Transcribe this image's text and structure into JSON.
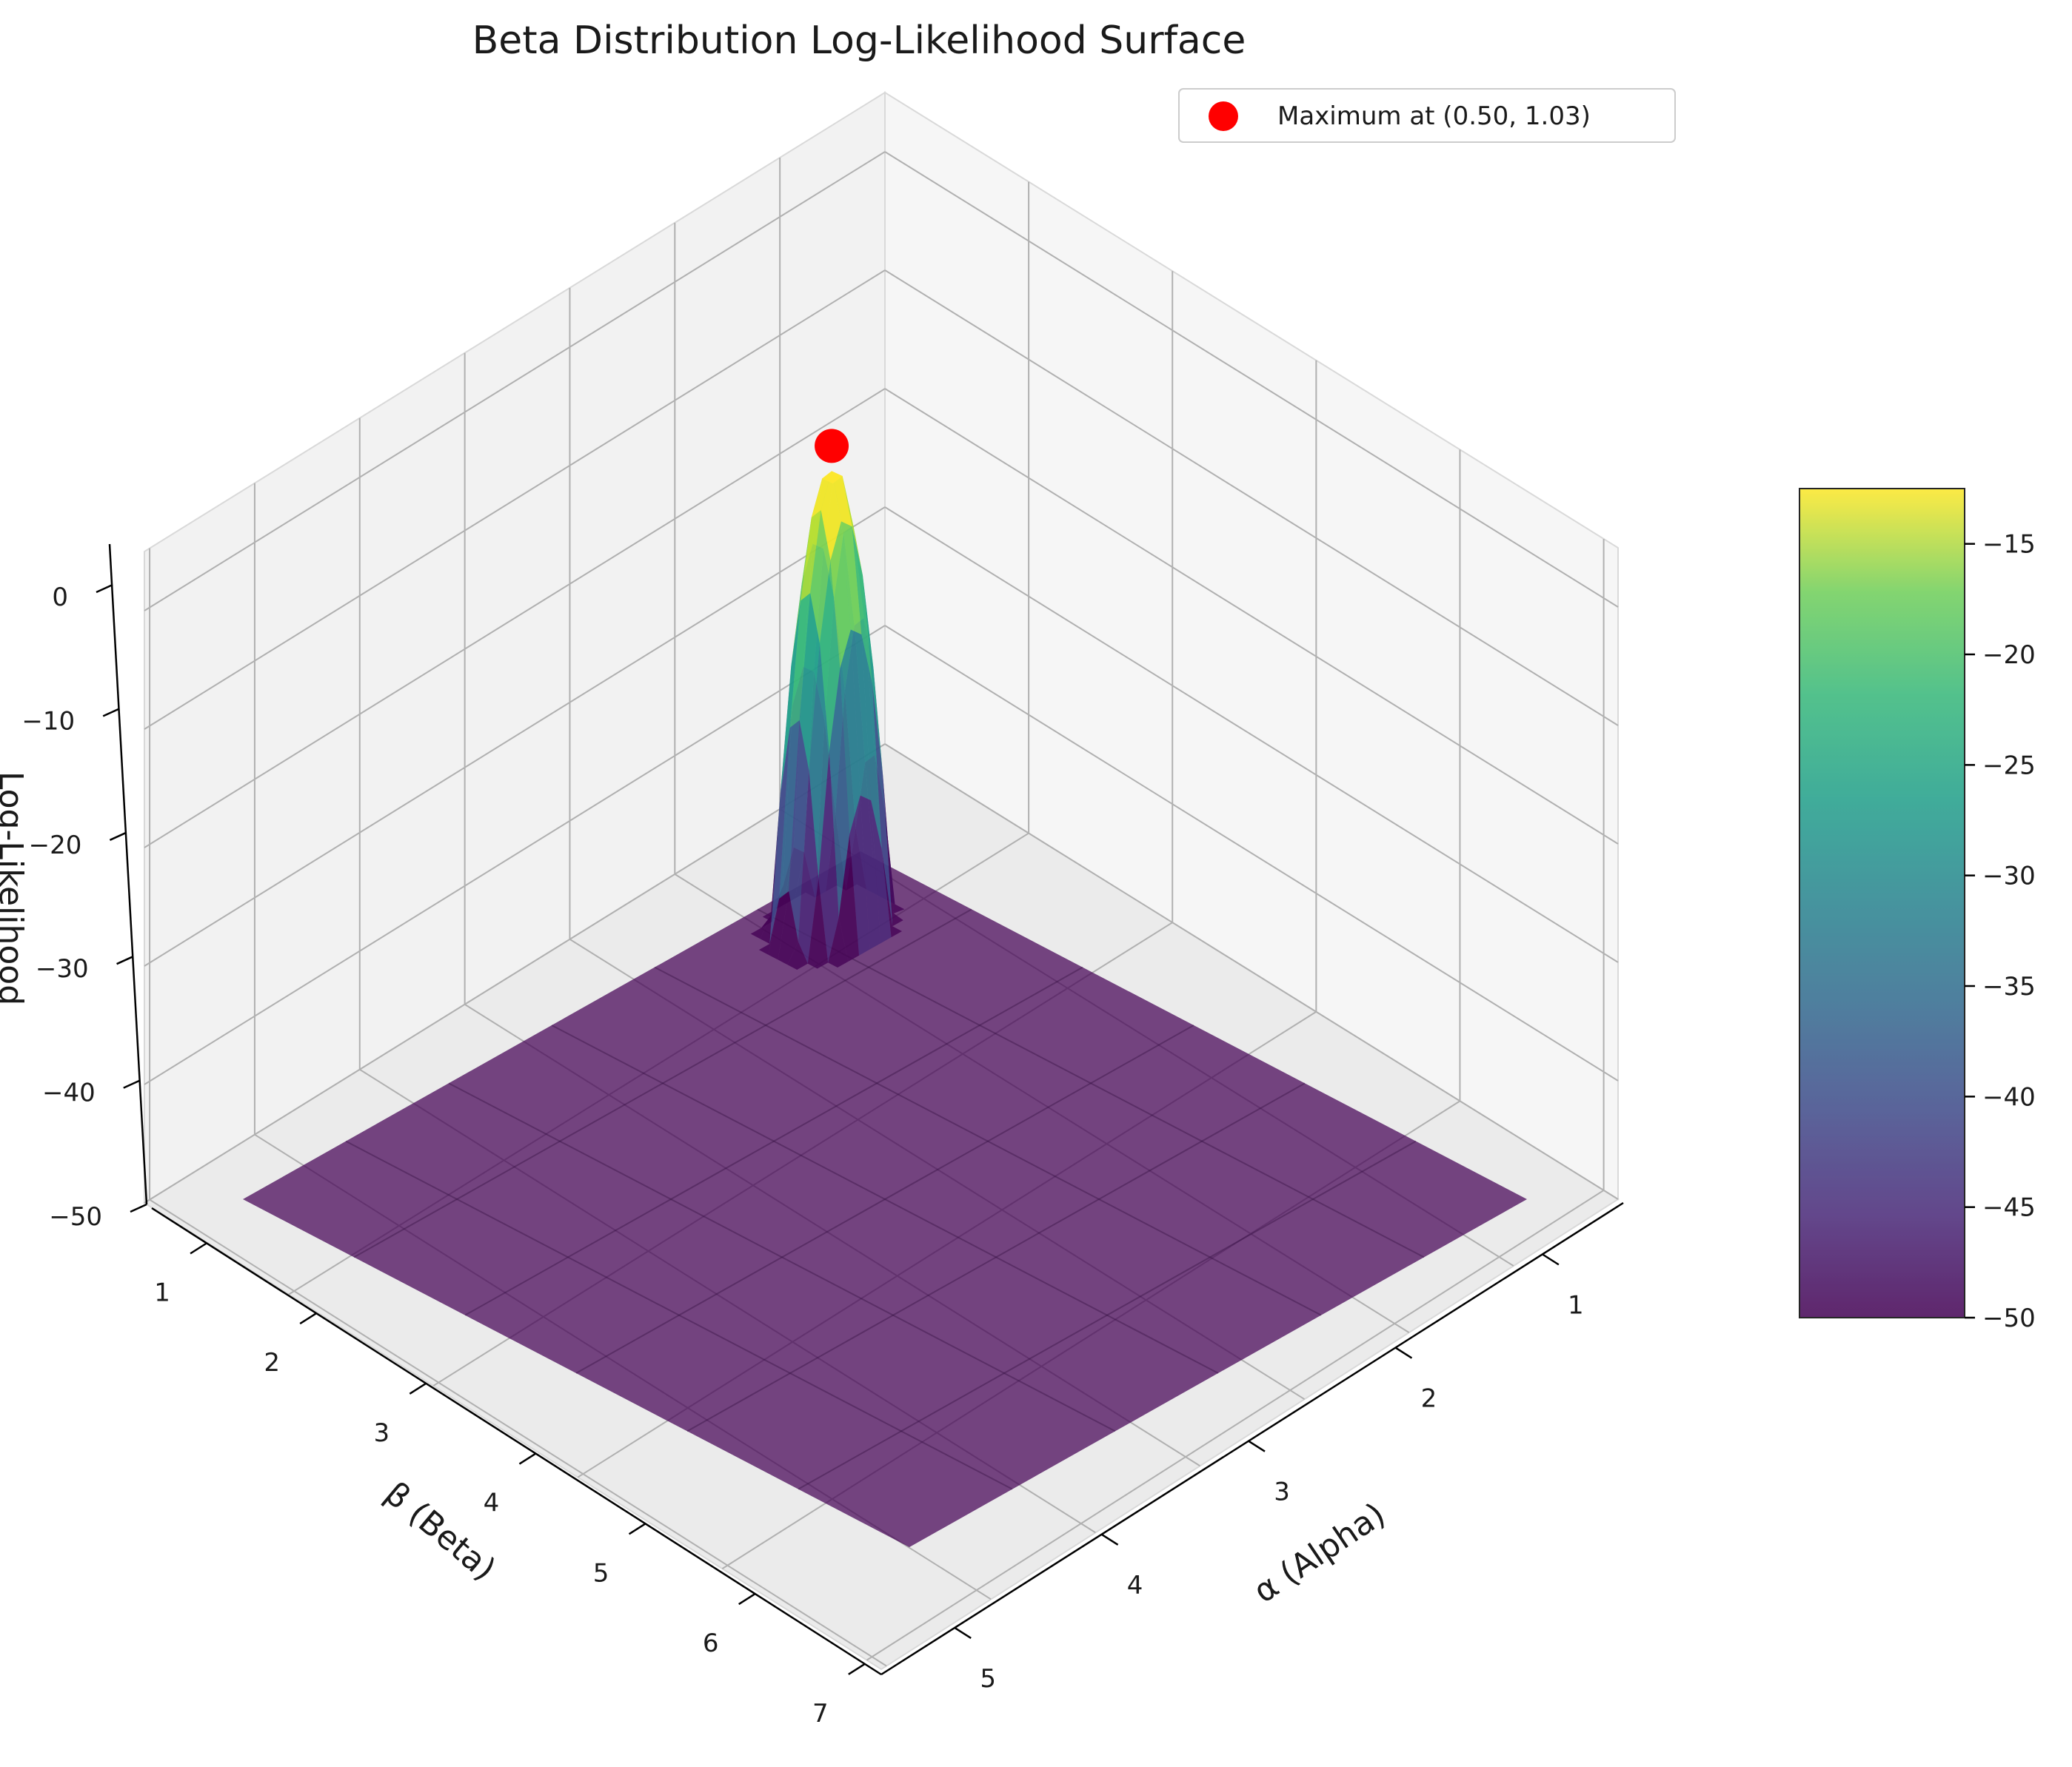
{
  "chart_data": {
    "type": "surface3d",
    "title": "Beta Distribution Log-Likelihood Surface",
    "xlabel": "α (Alpha)",
    "ylabel": "β (Beta)",
    "zlabel": "Log-Likelihood",
    "x_range": [
      0.1,
      5
    ],
    "y_range": [
      0.1,
      7
    ],
    "z_range": [
      -50,
      3
    ],
    "x_ticks": [
      "1",
      "2",
      "3",
      "4",
      "5"
    ],
    "y_ticks": [
      "1",
      "2",
      "3",
      "4",
      "5",
      "6",
      "7"
    ],
    "z_ticks": [
      "0",
      "−10",
      "−20",
      "−30",
      "−40",
      "−50"
    ],
    "colorbar_ticks": [
      "−15",
      "−20",
      "−25",
      "−30",
      "−35",
      "−40",
      "−45",
      "−50"
    ],
    "colorbar_range": [
      -50,
      -12.5
    ],
    "colormap": "viridis",
    "surface_floor": -50,
    "peak": {
      "alpha": 0.5,
      "beta": 1.03,
      "loglik": -12.5
    },
    "maximum_point": {
      "alpha": 0.5,
      "beta": 1.03,
      "color": "#ff0000"
    },
    "legend": {
      "label": "Maximum at (0.50, 1.03)",
      "placement": "upper right"
    },
    "grid": true
  }
}
